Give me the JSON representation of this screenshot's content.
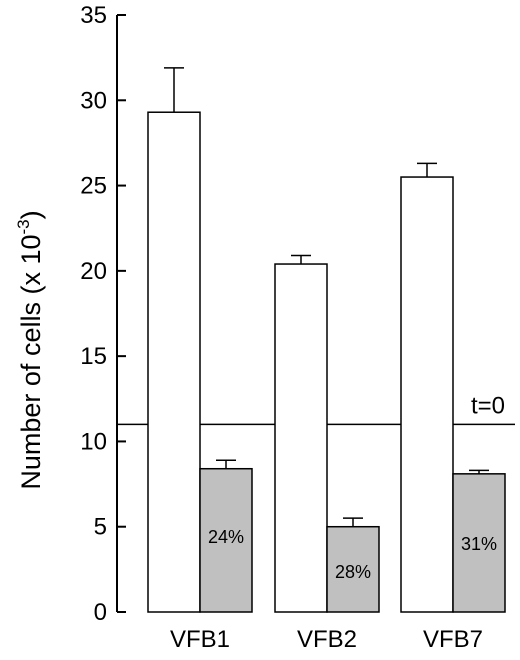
{
  "chart_data": {
    "type": "bar",
    "categories": [
      "VFB1",
      "VFB2",
      "VFB7"
    ],
    "series": [
      {
        "values": [
          29.3,
          20.4,
          25.5
        ],
        "errors": [
          2.6,
          0.5,
          0.8
        ],
        "color": "#ffffff"
      },
      {
        "values": [
          8.4,
          5.0,
          8.1
        ],
        "errors": [
          0.5,
          0.5,
          0.2
        ],
        "color": "#c0c0c0"
      }
    ],
    "bar_labels": [
      "24%",
      "28%",
      "31%"
    ],
    "ylabel": "Number of cells (x 10",
    "ylabel_exponent": "-3",
    "ylabel_close": ")",
    "ylim": [
      0,
      35
    ],
    "yticks": [
      0,
      5,
      10,
      15,
      20,
      25,
      30,
      35
    ],
    "reference_line": {
      "value": 11,
      "label": "t=0"
    },
    "grid": false,
    "legend": "none"
  }
}
